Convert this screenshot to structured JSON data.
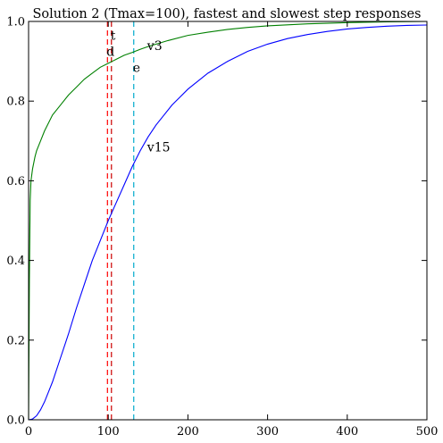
{
  "chart_data": {
    "type": "line",
    "title": "Solution 2 (Tmax=100), fastest and slowest step responses",
    "xlim": [
      0,
      500
    ],
    "ylim": [
      0.0,
      1.0
    ],
    "x_ticks": [
      0,
      100,
      200,
      300,
      400,
      500
    ],
    "x_tick_labels": [
      "0",
      "100",
      "200",
      "300",
      "400",
      "500"
    ],
    "y_ticks": [
      0.0,
      0.2,
      0.4,
      0.6,
      0.8,
      1.0
    ],
    "y_tick_labels": [
      "0.0",
      "0.2",
      "0.4",
      "0.6",
      "0.8",
      "1.0"
    ],
    "grid": false,
    "series": [
      {
        "color": "#008000",
        "x": [
          0,
          1,
          2,
          3,
          5,
          8,
          10,
          15,
          20,
          30,
          40,
          50,
          60,
          70,
          80,
          90,
          100,
          110,
          120,
          130,
          140,
          150,
          175,
          200,
          225,
          250,
          275,
          300,
          350,
          400,
          450,
          500
        ],
        "y": [
          0.0,
          0.35,
          0.55,
          0.6,
          0.63,
          0.66,
          0.675,
          0.7,
          0.725,
          0.765,
          0.79,
          0.815,
          0.835,
          0.855,
          0.87,
          0.885,
          0.895,
          0.905,
          0.915,
          0.922,
          0.93,
          0.937,
          0.952,
          0.965,
          0.973,
          0.98,
          0.985,
          0.989,
          0.994,
          0.997,
          0.999,
          1.0
        ]
      },
      {
        "color": "#0000ff",
        "x": [
          0,
          5,
          10,
          15,
          20,
          25,
          30,
          40,
          50,
          60,
          70,
          80,
          90,
          100,
          110,
          120,
          130,
          140,
          150,
          160,
          170,
          180,
          190,
          200,
          225,
          250,
          275,
          300,
          325,
          350,
          375,
          400,
          425,
          450,
          475,
          500
        ],
        "y": [
          0.0,
          0.002,
          0.01,
          0.025,
          0.045,
          0.07,
          0.095,
          0.155,
          0.215,
          0.28,
          0.34,
          0.4,
          0.45,
          0.5,
          0.545,
          0.59,
          0.635,
          0.675,
          0.71,
          0.74,
          0.765,
          0.79,
          0.81,
          0.83,
          0.87,
          0.9,
          0.925,
          0.943,
          0.957,
          0.967,
          0.975,
          0.981,
          0.985,
          0.988,
          0.99,
          0.991
        ]
      }
    ],
    "vlines": [
      {
        "x": 99,
        "color": "#ff0000"
      },
      {
        "x": 104,
        "color": "#cc0000"
      },
      {
        "x": 132,
        "color": "#00aacc"
      }
    ],
    "annotations": [
      {
        "text": "t",
        "x": 104,
        "y": 0.965
      },
      {
        "text": "d",
        "x": 99,
        "y": 0.925
      },
      {
        "text": "e",
        "x": 132,
        "y": 0.885
      },
      {
        "text": "v3",
        "x": 150,
        "y": 0.94
      },
      {
        "text": "v15",
        "x": 150,
        "y": 0.685
      }
    ]
  }
}
